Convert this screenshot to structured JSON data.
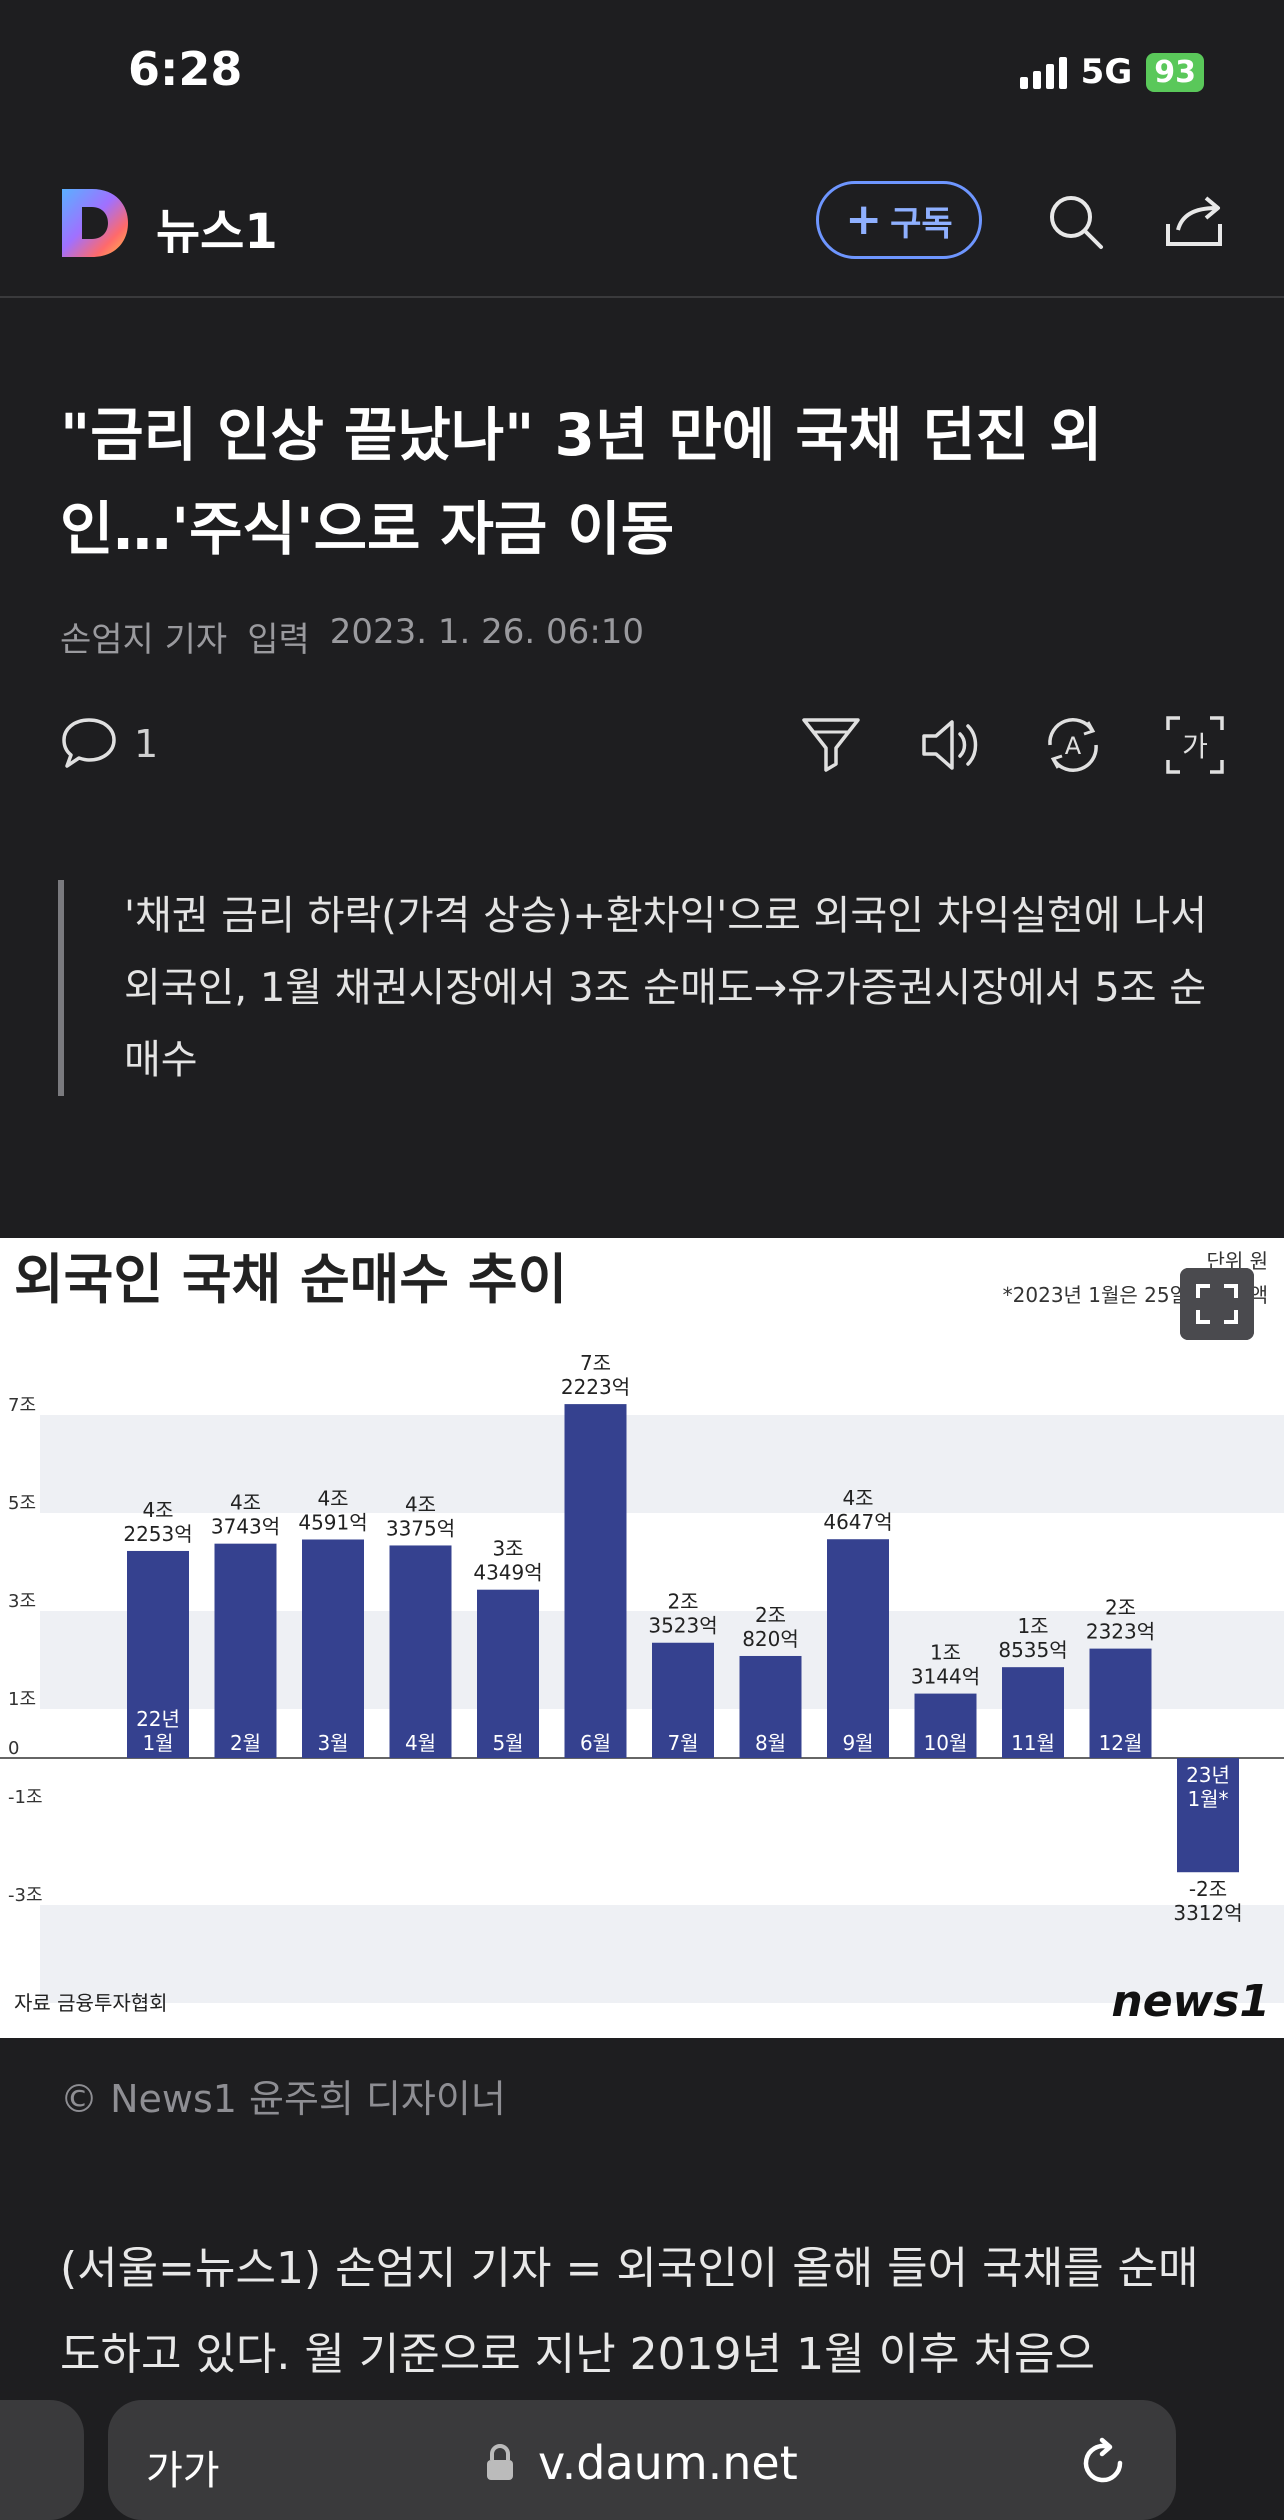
{
  "status_bar": {
    "time": "6:28",
    "network": "5G",
    "battery": "93"
  },
  "nav": {
    "brand": "뉴스1",
    "subscribe_label": "구독"
  },
  "article": {
    "headline": "\"금리 인상 끝났나\" 3년 만에 국채 던진 외인…'주식'으로 자금 이동",
    "author": "손엄지 기자",
    "date_label": "입력",
    "date": "2023. 1. 26. 06:10",
    "comment_count": "1",
    "summary": [
      "'채권 금리 하락(가격 상승)+환차익'으로 외국인 차익실현에 나서",
      "외국인, 1월 채권시장에서 3조 순매도→유가증권시장에서 5조 순매수"
    ],
    "photo_credit": "© News1 윤주희 디자이너",
    "body": "(서울=뉴스1) 손엄지 기자 = 외국인이 올해 들어 국채를 순매도하고 있다. 월 기준으로 지난 2019년 1월 이후 처음으"
  },
  "chart_data": {
    "type": "bar",
    "title": "외국인 국채 순매수 추이",
    "unit_label": "단위 원",
    "note": "*2023년 1월은 25일까지 금액",
    "source": "자료 금융투자협회",
    "logo_text": "news1",
    "categories": [
      "22년 1월",
      "2월",
      "3월",
      "4월",
      "5월",
      "6월",
      "7월",
      "8월",
      "9월",
      "10월",
      "11월",
      "12월",
      "23년 1월*"
    ],
    "values": [
      4.2253,
      4.3743,
      4.4591,
      4.3375,
      3.4349,
      7.2223,
      2.3523,
      2.082,
      4.4647,
      1.3144,
      1.8535,
      2.2323,
      -2.3312
    ],
    "value_labels": [
      [
        "4조",
        "2253억"
      ],
      [
        "4조",
        "3743억"
      ],
      [
        "4조",
        "4591억"
      ],
      [
        "4조",
        "3375억"
      ],
      [
        "3조",
        "4349억"
      ],
      [
        "7조",
        "2223억"
      ],
      [
        "2조",
        "3523억"
      ],
      [
        "2조",
        "820억"
      ],
      [
        "4조",
        "4647억"
      ],
      [
        "1조",
        "3144억"
      ],
      [
        "1조",
        "8535억"
      ],
      [
        "2조",
        "2323억"
      ],
      [
        "-2조",
        "3312억"
      ]
    ],
    "yticks": [
      "7조",
      "5조",
      "3조",
      "1조",
      "0",
      "-1조",
      "-3조"
    ],
    "ytick_values": [
      7,
      5,
      3,
      1,
      0,
      -1,
      -3
    ],
    "ylim": [
      -4,
      8
    ],
    "bar_color": "#35418f"
  },
  "bottom_bar": {
    "text_size": "가가",
    "url": "v.daum.net"
  },
  "colors": {
    "background": "#1e1e20",
    "accent": "#6e96ff"
  }
}
